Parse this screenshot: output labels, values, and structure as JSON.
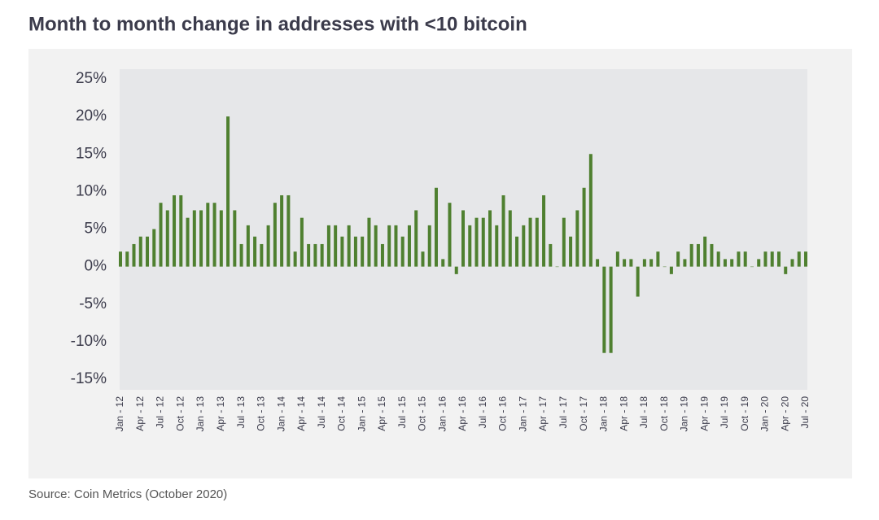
{
  "chart_data": {
    "type": "bar",
    "title": "Month to month change in addresses with <10 bitcoin",
    "source": "Source: Coin Metrics (October 2020)",
    "categories": [
      "Jan - 12",
      null,
      null,
      "Apr - 12",
      null,
      null,
      "Jul - 12",
      null,
      null,
      "Oct - 12",
      null,
      null,
      "Jan - 13",
      null,
      null,
      "Apr - 13",
      null,
      null,
      "Jul - 13",
      null,
      null,
      "Oct - 13",
      null,
      null,
      "Jan - 14",
      null,
      null,
      "Apr - 14",
      null,
      null,
      "Jul - 14",
      null,
      null,
      "Oct - 14",
      null,
      null,
      "Jan - 15",
      null,
      null,
      "Apr - 15",
      null,
      null,
      "Jul - 15",
      null,
      null,
      "Oct - 15",
      null,
      null,
      "Jan - 16",
      null,
      null,
      "Apr - 16",
      null,
      null,
      "Jul - 16",
      null,
      null,
      "Oct - 16",
      null,
      null,
      "Jan - 17",
      null,
      null,
      "Apr - 17",
      null,
      null,
      "Jul - 17",
      null,
      null,
      "Oct - 17",
      null,
      null,
      "Jan - 18",
      null,
      null,
      "Apr - 18",
      null,
      null,
      "Jul - 18",
      null,
      null,
      "Oct - 18",
      null,
      null,
      "Jan - 19",
      null,
      null,
      "Apr - 19",
      null,
      null,
      "Jul - 19",
      null,
      null,
      "Oct - 19",
      null,
      null,
      "Jan - 20",
      null,
      null,
      "Apr - 20",
      null,
      null,
      "Jul - 20"
    ],
    "values": [
      2,
      2,
      3,
      4,
      4,
      5,
      8.5,
      7.5,
      9.5,
      9.5,
      6.5,
      7.5,
      7.5,
      8.5,
      8.5,
      7.5,
      20,
      7.5,
      3,
      5.5,
      4,
      3,
      5.5,
      8.5,
      9.5,
      9.5,
      2,
      6.5,
      3,
      3,
      3,
      5.5,
      5.5,
      4,
      5.5,
      4,
      4,
      6.5,
      5.5,
      3,
      5.5,
      5.5,
      4,
      5.5,
      7.5,
      2,
      5.5,
      10.5,
      1,
      8.5,
      -1,
      7.5,
      5.5,
      6.5,
      6.5,
      7.5,
      5.5,
      9.5,
      7.5,
      4,
      5.5,
      6.5,
      6.5,
      9.5,
      3,
      0,
      6.5,
      4,
      7.5,
      10.5,
      15,
      1,
      -11.5,
      -11.5,
      2,
      1,
      1,
      -4,
      1,
      1,
      2,
      0,
      -1,
      2,
      1,
      3,
      3,
      4,
      3,
      2,
      1,
      1,
      2,
      2,
      0,
      1,
      2,
      2,
      2,
      -1,
      1,
      2,
      2
    ],
    "color": "#4f8030",
    "ylim": [
      -15,
      25
    ],
    "yticks": [
      {
        "value": -15,
        "label": "-15%"
      },
      {
        "value": -10,
        "label": "-10%"
      },
      {
        "value": -5,
        "label": "-5%"
      },
      {
        "value": 0,
        "label": "0%"
      },
      {
        "value": 5,
        "label": "5%"
      },
      {
        "value": 10,
        "label": "10%"
      },
      {
        "value": 15,
        "label": "15%"
      },
      {
        "value": 20,
        "label": "20%"
      },
      {
        "value": 25,
        "label": "25%"
      }
    ],
    "grid": false
  }
}
